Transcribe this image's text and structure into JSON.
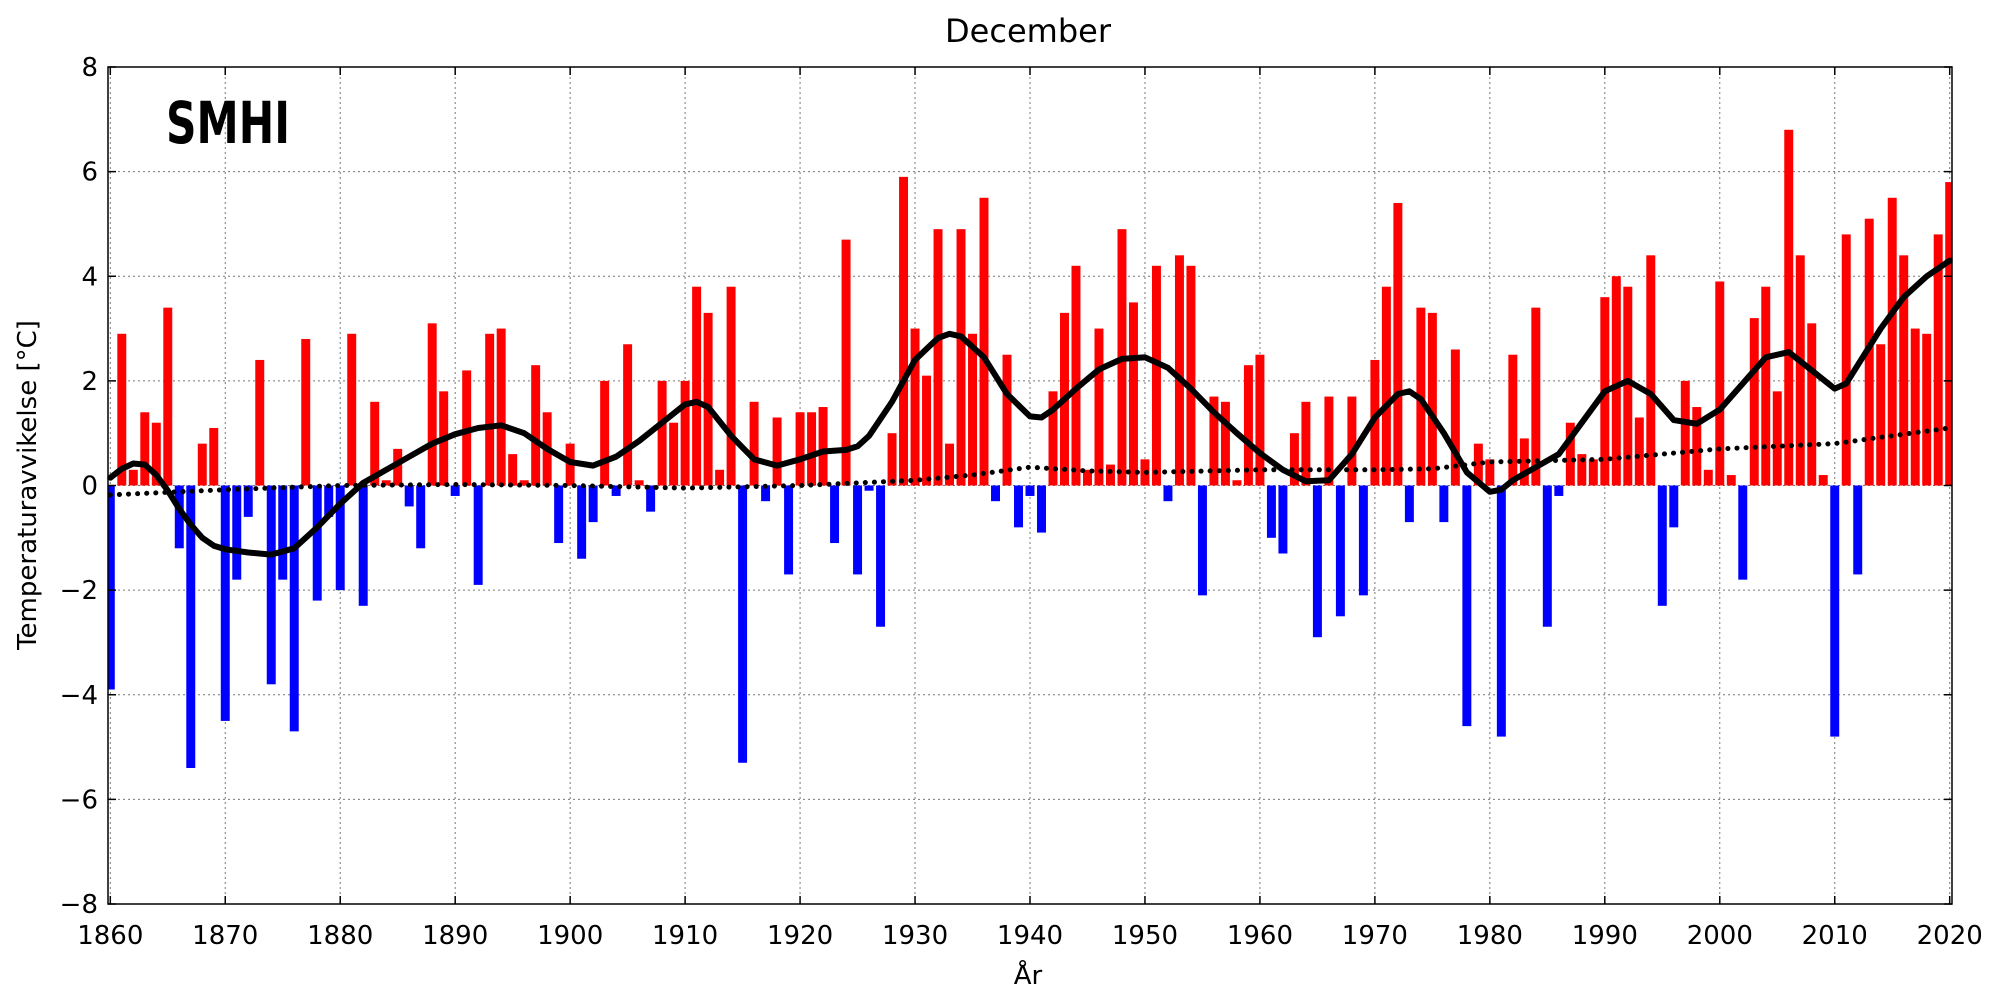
{
  "chart_data": {
    "type": "bar",
    "title": "December",
    "xlabel": "År",
    "ylabel": "Temperaturavvikelse [°C]",
    "logo": "SMHI",
    "xlim": [
      1859.8,
      2020.2
    ],
    "ylim": [
      -8,
      8
    ],
    "x_ticks": [
      1860,
      1870,
      1880,
      1890,
      1900,
      1910,
      1920,
      1930,
      1940,
      1950,
      1960,
      1970,
      1980,
      1990,
      2000,
      2010,
      2020
    ],
    "x_tick_labels": [
      "1860",
      "1870",
      "1880",
      "1890",
      "1900",
      "1910",
      "1920",
      "1930",
      "1940",
      "1950",
      "1960",
      "1970",
      "1980",
      "1990",
      "2000",
      "2010",
      "2020"
    ],
    "y_ticks": [
      -8,
      -6,
      -4,
      -2,
      0,
      2,
      4,
      6,
      8
    ],
    "y_tick_labels": [
      "−8",
      "−6",
      "−4",
      "−2",
      "0",
      "2",
      "4",
      "6",
      "8"
    ],
    "grid": true,
    "colors": {
      "positive": "#ff0000",
      "negative": "#0000ff",
      "line": "#000000"
    },
    "start_year": 1860,
    "anomalies": [
      -3.9,
      2.9,
      0.3,
      1.4,
      1.2,
      3.4,
      -1.2,
      -5.4,
      0.8,
      1.1,
      -4.5,
      -1.8,
      -0.6,
      2.4,
      -3.8,
      -1.8,
      -4.7,
      2.8,
      -2.2,
      -0.6,
      -2.0,
      2.9,
      -2.3,
      1.6,
      0.1,
      0.7,
      -0.4,
      -1.2,
      3.1,
      1.8,
      -0.2,
      2.2,
      -1.9,
      2.9,
      3.0,
      0.6,
      0.1,
      2.3,
      1.4,
      -1.1,
      0.8,
      -1.4,
      -0.7,
      2.0,
      -0.2,
      2.7,
      0.1,
      -0.5,
      2.0,
      1.2,
      2.0,
      3.8,
      3.3,
      0.3,
      3.8,
      -5.3,
      1.6,
      -0.3,
      1.3,
      -1.7,
      1.4,
      1.4,
      1.5,
      -1.1,
      4.7,
      -1.7,
      -0.1,
      -2.7,
      1.0,
      5.9,
      3.0,
      2.1,
      4.9,
      0.8,
      4.9,
      2.9,
      5.5,
      -0.3,
      2.5,
      -0.8,
      -0.2,
      -0.9,
      1.8,
      3.3,
      4.2,
      0.3,
      3.0,
      0.4,
      4.9,
      3.5,
      0.5,
      4.2,
      -0.3,
      4.4,
      4.2,
      -2.1,
      1.7,
      1.6,
      0.1,
      2.3,
      2.5,
      -1.0,
      -1.3,
      1.0,
      1.6,
      -2.9,
      1.7,
      -2.5,
      1.7,
      -2.1,
      2.4,
      3.8,
      5.4,
      -0.7,
      3.4,
      3.3,
      -0.7,
      2.6,
      -4.6,
      0.8,
      0.5,
      -4.8,
      2.5,
      0.9,
      3.4,
      -2.7,
      -0.2,
      1.2,
      0.6,
      0.5,
      3.6,
      4.0,
      3.8,
      1.3,
      4.4,
      -2.3,
      -0.8,
      2.0,
      1.5,
      0.3,
      3.9,
      0.2,
      -1.8,
      3.2,
      3.8,
      1.8,
      6.8,
      4.4,
      3.1,
      0.2,
      -4.8,
      4.8,
      -1.7,
      5.1,
      2.7,
      5.5,
      4.4,
      3.0,
      2.9,
      4.8,
      5.8
    ],
    "series": [
      {
        "name": "smoothed",
        "style": "solid",
        "points": [
          [
            1860,
            0.15
          ],
          [
            1861,
            0.32
          ],
          [
            1862,
            0.42
          ],
          [
            1863,
            0.4
          ],
          [
            1864,
            0.2
          ],
          [
            1865,
            -0.1
          ],
          [
            1866,
            -0.45
          ],
          [
            1867,
            -0.75
          ],
          [
            1868,
            -1.0
          ],
          [
            1869,
            -1.15
          ],
          [
            1870,
            -1.22
          ],
          [
            1872,
            -1.28
          ],
          [
            1874,
            -1.32
          ],
          [
            1876,
            -1.2
          ],
          [
            1878,
            -0.8
          ],
          [
            1880,
            -0.35
          ],
          [
            1882,
            0.05
          ],
          [
            1884,
            0.3
          ],
          [
            1886,
            0.55
          ],
          [
            1888,
            0.8
          ],
          [
            1890,
            0.98
          ],
          [
            1892,
            1.1
          ],
          [
            1894,
            1.15
          ],
          [
            1896,
            1.0
          ],
          [
            1898,
            0.7
          ],
          [
            1900,
            0.45
          ],
          [
            1902,
            0.38
          ],
          [
            1904,
            0.55
          ],
          [
            1906,
            0.85
          ],
          [
            1908,
            1.2
          ],
          [
            1910,
            1.55
          ],
          [
            1911,
            1.6
          ],
          [
            1912,
            1.5
          ],
          [
            1914,
            0.95
          ],
          [
            1916,
            0.5
          ],
          [
            1918,
            0.38
          ],
          [
            1920,
            0.5
          ],
          [
            1922,
            0.65
          ],
          [
            1924,
            0.68
          ],
          [
            1925,
            0.75
          ],
          [
            1926,
            0.95
          ],
          [
            1928,
            1.6
          ],
          [
            1930,
            2.4
          ],
          [
            1932,
            2.82
          ],
          [
            1933,
            2.9
          ],
          [
            1934,
            2.85
          ],
          [
            1936,
            2.45
          ],
          [
            1938,
            1.75
          ],
          [
            1940,
            1.32
          ],
          [
            1941,
            1.3
          ],
          [
            1942,
            1.45
          ],
          [
            1944,
            1.85
          ],
          [
            1946,
            2.22
          ],
          [
            1948,
            2.42
          ],
          [
            1950,
            2.45
          ],
          [
            1952,
            2.25
          ],
          [
            1954,
            1.85
          ],
          [
            1956,
            1.4
          ],
          [
            1958,
            1.0
          ],
          [
            1960,
            0.62
          ],
          [
            1962,
            0.3
          ],
          [
            1964,
            0.08
          ],
          [
            1966,
            0.1
          ],
          [
            1968,
            0.6
          ],
          [
            1970,
            1.3
          ],
          [
            1972,
            1.75
          ],
          [
            1973,
            1.8
          ],
          [
            1974,
            1.65
          ],
          [
            1976,
            1.0
          ],
          [
            1978,
            0.25
          ],
          [
            1980,
            -0.12
          ],
          [
            1981,
            -0.08
          ],
          [
            1982,
            0.1
          ],
          [
            1984,
            0.35
          ],
          [
            1986,
            0.6
          ],
          [
            1988,
            1.2
          ],
          [
            1990,
            1.8
          ],
          [
            1992,
            2.0
          ],
          [
            1994,
            1.75
          ],
          [
            1996,
            1.25
          ],
          [
            1998,
            1.18
          ],
          [
            2000,
            1.45
          ],
          [
            2002,
            1.95
          ],
          [
            2004,
            2.45
          ],
          [
            2006,
            2.55
          ],
          [
            2008,
            2.2
          ],
          [
            2010,
            1.85
          ],
          [
            2011,
            1.95
          ],
          [
            2012,
            2.3
          ],
          [
            2014,
            3.0
          ],
          [
            2016,
            3.6
          ],
          [
            2018,
            4.0
          ],
          [
            2020,
            4.3
          ]
        ]
      },
      {
        "name": "trend",
        "style": "dotted",
        "points": [
          [
            1860,
            -0.18
          ],
          [
            1870,
            -0.08
          ],
          [
            1880,
            0.0
          ],
          [
            1890,
            0.02
          ],
          [
            1900,
            0.0
          ],
          [
            1910,
            -0.05
          ],
          [
            1920,
            0.0
          ],
          [
            1930,
            0.1
          ],
          [
            1935,
            0.2
          ],
          [
            1940,
            0.35
          ],
          [
            1945,
            0.28
          ],
          [
            1950,
            0.25
          ],
          [
            1960,
            0.3
          ],
          [
            1970,
            0.3
          ],
          [
            1975,
            0.32
          ],
          [
            1980,
            0.45
          ],
          [
            1990,
            0.5
          ],
          [
            1995,
            0.6
          ],
          [
            2000,
            0.7
          ],
          [
            2010,
            0.8
          ],
          [
            2015,
            0.95
          ],
          [
            2020,
            1.1
          ]
        ]
      }
    ]
  }
}
